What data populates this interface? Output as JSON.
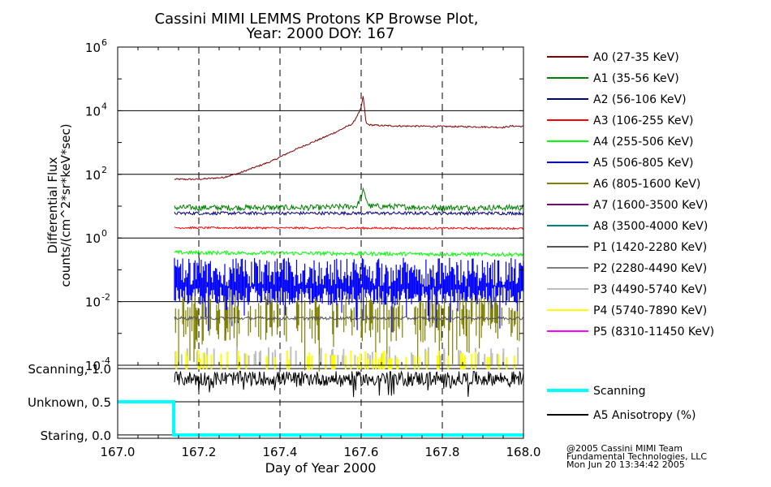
{
  "chart_data": [
    {
      "type": "line",
      "title": "Cassini MIMI LEMMS Protons KP Browse Plot,",
      "subtitle": "Year: 2000 DOY: 167",
      "ylabel": "Differential Flux",
      "ylabel2": "counts/(cm^2*sr*keV*sec)",
      "yscale": "log",
      "ylim": [
        0.0001,
        1000000
      ],
      "xlim": [
        167.0,
        168.0
      ],
      "grid": true,
      "legend_position": "right",
      "y_ticks": [
        {
          "base": "10",
          "exp": "-4",
          "value": 0.0001
        },
        {
          "base": "10",
          "exp": "-2",
          "value": 0.01
        },
        {
          "base": "10",
          "exp": "0",
          "value": 1
        },
        {
          "base": "10",
          "exp": "2",
          "value": 100
        },
        {
          "base": "10",
          "exp": "4",
          "value": 10000
        },
        {
          "base": "10",
          "exp": "6",
          "value": 1000000
        }
      ],
      "series": [
        {
          "name": "A0 (27-35 KeV)",
          "color": "#800000",
          "x": [
            167.14,
            167.2,
            167.26,
            167.3,
            167.34,
            167.38,
            167.42,
            167.46,
            167.5,
            167.54,
            167.58,
            167.6,
            167.605,
            167.612,
            167.62,
            167.65,
            167.7,
            167.8,
            167.9,
            167.95,
            167.97,
            168.0
          ],
          "values": [
            70,
            70,
            80,
            110,
            170,
            260,
            470,
            800,
            1300,
            2200,
            4000,
            12000,
            30000,
            4000,
            3600,
            3400,
            3300,
            3200,
            3100,
            3000,
            3300,
            3200
          ]
        },
        {
          "name": "A1 (35-56 KeV)",
          "color": "#008000",
          "x": [
            167.14,
            167.3,
            167.5,
            167.59,
            167.605,
            167.62,
            167.8,
            168.0
          ],
          "values": [
            9,
            9,
            9,
            10,
            30,
            10,
            9,
            9
          ]
        },
        {
          "name": "A2 (56-106 KeV)",
          "color": "#000080",
          "x": [
            167.14,
            168.0
          ],
          "values": [
            6,
            6
          ]
        },
        {
          "name": "A3 (106-255 KeV)",
          "color": "#ff0000",
          "x": [
            167.14,
            168.0
          ],
          "values": [
            2.1,
            2.0
          ]
        },
        {
          "name": "A4 (255-506 KeV)",
          "color": "#00ff00",
          "x": [
            167.14,
            168.0
          ],
          "values": [
            0.35,
            0.3
          ]
        },
        {
          "name": "A5 (506-805 KeV)",
          "color": "#0000ff",
          "x": [
            167.14,
            168.0
          ],
          "values": [
            0.03,
            0.03
          ]
        },
        {
          "name": "A6 (805-1600 KeV)",
          "color": "#808000",
          "x": [
            167.14,
            168.0
          ],
          "values": [
            0.01,
            0.01
          ]
        },
        {
          "name": "A7 (1600-3500 KeV)",
          "color": "#800080",
          "x": [],
          "values": []
        },
        {
          "name": "A8 (3500-4000 KeV)",
          "color": "#008080",
          "x": [],
          "values": []
        },
        {
          "name": "P1 (1420-2280 KeV)",
          "color": "#555555",
          "x": [
            167.14,
            168.0
          ],
          "values": [
            0.003,
            0.003
          ]
        },
        {
          "name": "P2 (2280-4490 KeV)",
          "color": "#808080",
          "x": [],
          "values": []
        },
        {
          "name": "P3 (4490-5740 KeV)",
          "color": "#c0c0c0",
          "x": [
            167.14,
            168.0
          ],
          "values": [
            0.0002,
            0.0002
          ]
        },
        {
          "name": "P4 (5740-7890 KeV)",
          "color": "#ffff00",
          "x": [
            167.14,
            168.0
          ],
          "values": [
            0.00015,
            0.00015
          ]
        },
        {
          "name": "P5 (8310-11450 KeV)",
          "color": "#ff00ff",
          "x": [],
          "values": []
        }
      ]
    },
    {
      "type": "line",
      "xlabel": "Day of Year 2000",
      "xlim": [
        167.0,
        168.0
      ],
      "ylim": [
        -0.05,
        1.05
      ],
      "x_ticks": [
        "167.0",
        "167.2",
        "167.4",
        "167.6",
        "167.8",
        "168.0"
      ],
      "y_ticks": [
        {
          "label": "Scanning, 1.0",
          "value": 1.0
        },
        {
          "label": "Unknown, 0.5",
          "value": 0.5
        },
        {
          "label": "Staring, 0.0",
          "value": 0.0
        }
      ],
      "legend_position": "right",
      "series": [
        {
          "name": "Scanning",
          "color": "#00ffff",
          "x": [
            167.0,
            167.138,
            167.138,
            168.0
          ],
          "values": [
            0.5,
            0.5,
            0.0,
            0.0
          ]
        },
        {
          "name": "A5 Anisotropy (%)",
          "color": "#000000",
          "x": [
            167.14,
            168.0
          ],
          "values": [
            0.85,
            0.85
          ]
        }
      ]
    }
  ],
  "credit": {
    "line1": "@2005 Cassini MIMI Team",
    "line2": "Fundamental Technologies, LLC",
    "line3": "Mon Jun 20 13:34:42 2005"
  }
}
